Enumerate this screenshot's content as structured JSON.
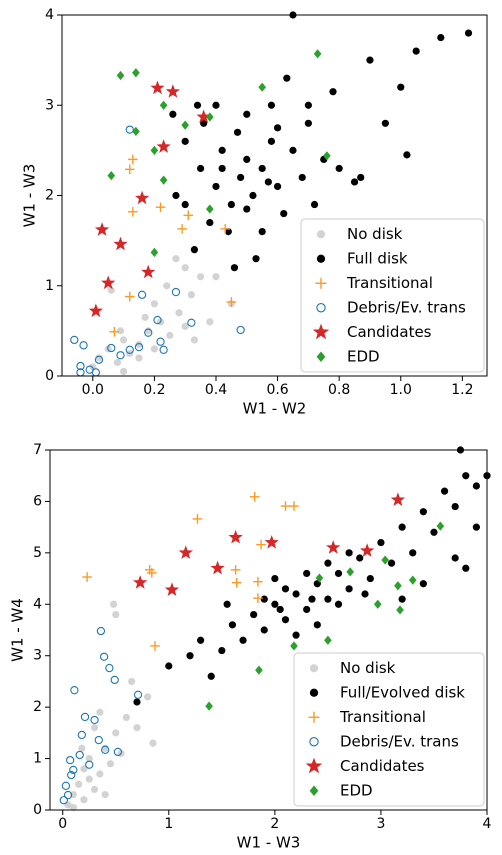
{
  "chart_data": [
    {
      "type": "scatter",
      "xlabel": "W1 - W2",
      "ylabel": "W1 - W3",
      "xlim": [
        -0.1,
        1.28
      ],
      "ylim": [
        0,
        4
      ],
      "xticks": [
        {
          "value": 0,
          "label": "0.0"
        },
        {
          "value": 0.2,
          "label": "0.2"
        },
        {
          "value": 0.4,
          "label": "0.4"
        },
        {
          "value": 0.6,
          "label": "0.6"
        },
        {
          "value": 0.8,
          "label": "0.8"
        },
        {
          "value": 1.0,
          "label": "1.0"
        },
        {
          "value": 1.2,
          "label": "1.2"
        }
      ],
      "yticks": [
        0,
        1,
        2,
        3,
        4
      ],
      "grid": false,
      "legend": "lower right",
      "series": [
        {
          "name": "No disk",
          "color": "#d3d3d3",
          "marker": "circle",
          "x": [
            0.0,
            0.02,
            0.05,
            0.08,
            0.1,
            0.12,
            0.15,
            0.18,
            0.2,
            0.22,
            0.25,
            0.28,
            0.3,
            0.32,
            0.35,
            0.38,
            0.27,
            0.3,
            0.06,
            0.15,
            0.2,
            0.24,
            0.45,
            0.1,
            0.17,
            0.4,
            0.33,
            0.09
          ],
          "y": [
            0.1,
            0.2,
            0.3,
            0.15,
            0.4,
            0.25,
            0.35,
            0.5,
            0.3,
            0.6,
            0.45,
            0.7,
            0.55,
            0.9,
            1.1,
            0.6,
            1.3,
            1.2,
            0.95,
            0.2,
            0.8,
            1.0,
            0.8,
            0.05,
            0.65,
            1.1,
            0.4,
            0.5
          ]
        },
        {
          "name": "Full disk",
          "color": "#000000",
          "marker": "circle",
          "x": [
            0.35,
            0.4,
            0.42,
            0.45,
            0.48,
            0.5,
            0.52,
            0.55,
            0.58,
            0.6,
            0.62,
            0.47,
            0.44,
            0.38,
            0.33,
            0.3,
            0.36,
            0.55,
            0.65,
            0.68,
            0.7,
            0.72,
            0.5,
            0.4,
            0.27,
            0.3,
            0.53,
            0.46,
            0.58,
            0.63,
            0.75,
            0.8,
            0.85,
            0.87,
            0.9,
            0.95,
            1.0,
            1.02,
            1.05,
            1.13,
            1.22,
            0.65,
            0.78,
            0.7,
            0.42,
            0.5,
            0.57,
            0.34,
            0.26,
            0.6
          ],
          "y": [
            2.3,
            2.1,
            2.5,
            1.9,
            2.2,
            2.4,
            2.0,
            2.3,
            2.6,
            2.1,
            1.8,
            2.7,
            1.6,
            1.7,
            1.4,
            1.9,
            2.8,
            1.6,
            2.5,
            2.2,
            2.8,
            1.9,
            2.9,
            3.0,
            2.0,
            2.6,
            1.3,
            1.2,
            3.0,
            3.3,
            2.4,
            2.3,
            2.15,
            2.2,
            3.5,
            2.8,
            3.2,
            2.45,
            3.6,
            3.75,
            3.8,
            4.0,
            3.15,
            3.0,
            2.3,
            1.85,
            2.15,
            3.0,
            2.9,
            2.75
          ]
        },
        {
          "name": "Transitional",
          "color": "#ff9922",
          "marker": "plus",
          "x": [
            0.13,
            0.12,
            0.13,
            0.22,
            0.31,
            0.29,
            0.45,
            0.07,
            0.12,
            0.43
          ],
          "y": [
            2.4,
            2.29,
            1.82,
            1.87,
            1.78,
            1.63,
            0.82,
            0.49,
            0.88,
            1.63
          ]
        },
        {
          "name": "Debris/Ev. trans",
          "color": "#1f77b4",
          "marker": "open-circle",
          "x": [
            0.12,
            0.16,
            0.27,
            0.32,
            0.48,
            0.23,
            0.18,
            0.22,
            0.12,
            0.09,
            0.02,
            -0.04,
            -0.06,
            -0.03,
            -0.01,
            0.01,
            -0.04,
            0.06,
            0.15,
            0.21
          ],
          "y": [
            2.73,
            0.9,
            0.93,
            0.59,
            0.51,
            0.29,
            0.48,
            0.38,
            0.29,
            0.23,
            0.18,
            0.11,
            0.4,
            0.34,
            0.07,
            0.04,
            0.04,
            0.31,
            0.32,
            0.62
          ]
        },
        {
          "name": "Candidates",
          "color": "#d62728",
          "marker": "star",
          "x": [
            0.21,
            0.26,
            0.23,
            0.36,
            0.16,
            0.03,
            0.09,
            0.18,
            0.05,
            0.01
          ],
          "y": [
            3.19,
            3.15,
            2.54,
            2.87,
            1.97,
            1.62,
            1.46,
            1.15,
            1.03,
            0.72
          ]
        },
        {
          "name": "EDD",
          "color": "#2ca02c",
          "marker": "diamond",
          "x": [
            0.09,
            0.14,
            0.23,
            0.14,
            0.2,
            0.06,
            0.23,
            0.3,
            0.38,
            0.55,
            0.73,
            0.76,
            0.2,
            0.38
          ],
          "y": [
            3.33,
            3.36,
            3.0,
            2.71,
            2.5,
            2.22,
            2.17,
            2.78,
            2.87,
            3.2,
            3.57,
            2.44,
            1.37,
            1.85
          ]
        }
      ]
    },
    {
      "type": "scatter",
      "xlabel": "W1 - W3",
      "ylabel": "W1 - W4",
      "xlim": [
        -0.12,
        4
      ],
      "ylim": [
        0,
        7
      ],
      "xticks": [
        0,
        1,
        2,
        3,
        4
      ],
      "yticks": [
        0,
        1,
        2,
        3,
        4,
        5,
        6,
        7
      ],
      "grid": false,
      "legend": "lower right",
      "series": [
        {
          "name": "No disk",
          "color": "#d3d3d3",
          "marker": "circle",
          "x": [
            0.05,
            0.1,
            0.15,
            0.2,
            0.25,
            0.3,
            0.35,
            0.4,
            0.45,
            0.5,
            0.2,
            0.3,
            0.55,
            0.6,
            0.7,
            0.8,
            0.85,
            0.5,
            0.48,
            0.1,
            0.25,
            0.4,
            0.65,
            0.35,
            0.18
          ],
          "y": [
            0.1,
            0.3,
            0.5,
            0.8,
            1.0,
            0.4,
            0.7,
            1.2,
            0.9,
            1.5,
            0.2,
            1.6,
            1.1,
            1.8,
            1.6,
            2.2,
            1.3,
            3.8,
            4.0,
            0.05,
            0.6,
            0.3,
            2.5,
            1.9,
            1.2
          ]
        },
        {
          "name": "Full/Evolved disk",
          "color": "#000000",
          "marker": "circle",
          "x": [
            0.7,
            1.0,
            1.2,
            1.3,
            1.5,
            1.6,
            1.7,
            1.8,
            1.9,
            2.0,
            2.1,
            2.2,
            2.3,
            2.4,
            2.5,
            2.6,
            2.7,
            2.8,
            2.9,
            3.0,
            3.1,
            3.2,
            3.3,
            3.4,
            3.5,
            3.6,
            3.7,
            3.8,
            3.9,
            3.75,
            4.0,
            2.0,
            2.2,
            2.4,
            2.6,
            1.9,
            2.1,
            2.3,
            2.5,
            2.7,
            1.4,
            3.2,
            3.4,
            3.7,
            3.9,
            3.8,
            1.55,
            2.05,
            2.35,
            2.85
          ],
          "y": [
            2.1,
            2.8,
            3.0,
            3.3,
            3.1,
            3.6,
            3.3,
            3.8,
            3.5,
            4.0,
            3.7,
            4.2,
            3.9,
            4.4,
            4.1,
            4.6,
            4.3,
            4.9,
            4.5,
            5.2,
            4.8,
            5.5,
            5.0,
            5.8,
            5.4,
            6.2,
            5.9,
            6.5,
            6.3,
            7.0,
            6.5,
            4.5,
            3.4,
            3.6,
            4.0,
            4.1,
            4.3,
            4.6,
            4.8,
            5.0,
            2.6,
            4.1,
            4.4,
            4.9,
            5.5,
            4.7,
            4.0,
            3.9,
            4.1,
            4.2
          ]
        },
        {
          "name": "Transitional",
          "color": "#ff9922",
          "marker": "plus",
          "x": [
            0.23,
            0.82,
            0.84,
            0.87,
            1.27,
            1.63,
            1.64,
            1.81,
            2.1,
            2.18,
            1.87,
            1.84,
            1.84
          ],
          "y": [
            4.53,
            4.67,
            4.61,
            3.19,
            5.66,
            4.67,
            4.42,
            6.09,
            5.91,
            5.91,
            5.16,
            4.44,
            4.12
          ]
        },
        {
          "name": "Debris/Ev. trans",
          "color": "#1f77b4",
          "marker": "open-circle",
          "x": [
            0.36,
            0.49,
            0.11,
            0.39,
            0.44,
            0.71,
            0.21,
            0.3,
            0.18,
            0.34,
            0.4,
            0.52,
            0.07,
            0.1,
            0.03,
            0.05,
            0.16,
            0.25,
            0.08,
            0.01
          ],
          "y": [
            3.48,
            2.53,
            2.33,
            2.98,
            2.76,
            2.24,
            1.81,
            1.75,
            1.46,
            1.36,
            1.17,
            1.13,
            0.97,
            0.78,
            0.47,
            0.29,
            1.07,
            0.88,
            0.68,
            0.19
          ]
        },
        {
          "name": "Candidates",
          "color": "#d62728",
          "marker": "star",
          "x": [
            1.16,
            1.63,
            1.46,
            1.03,
            0.73,
            1.97,
            2.55,
            2.87,
            3.16
          ],
          "y": [
            5.0,
            5.3,
            4.7,
            4.28,
            4.42,
            5.2,
            5.1,
            5.04,
            6.03
          ]
        },
        {
          "name": "EDD",
          "color": "#2ca02c",
          "marker": "diamond",
          "x": [
            1.38,
            1.85,
            2.18,
            2.5,
            2.97,
            3.18,
            3.3,
            3.16,
            2.42,
            2.71,
            3.56,
            3.04
          ],
          "y": [
            2.02,
            2.72,
            3.19,
            3.3,
            4.0,
            3.89,
            4.47,
            4.36,
            4.51,
            4.63,
            5.52,
            4.86
          ]
        }
      ]
    }
  ]
}
